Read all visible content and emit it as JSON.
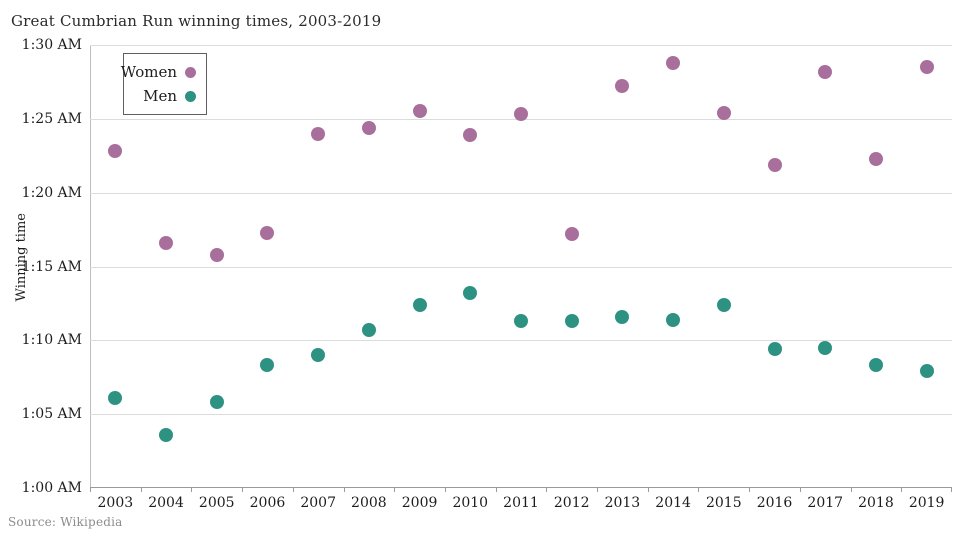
{
  "header": {
    "title": "Great Cumbrian Run winning times, 2003-2019"
  },
  "source": {
    "label": "Source: Wikipedia"
  },
  "legend": {
    "items": [
      {
        "label": "Women",
        "color": "#a86f9c"
      },
      {
        "label": "Men",
        "color": "#2e9283"
      }
    ]
  },
  "axes": {
    "y_title": "Winning time",
    "y_ticks": [
      "1:30 AM",
      "1:25 AM",
      "1:20 AM",
      "1:15 AM",
      "1:10 AM",
      "1:05 AM",
      "1:00 AM"
    ],
    "x_ticks": [
      "2003",
      "2004",
      "2005",
      "2006",
      "2007",
      "2008",
      "2009",
      "2010",
      "2011",
      "2012",
      "2013",
      "2014",
      "2015",
      "2016",
      "2017",
      "2018",
      "2019"
    ]
  },
  "chart_data": {
    "type": "scatter",
    "title": "Great Cumbrian Run winning times, 2003-2019",
    "xlabel": "",
    "ylabel": "Winning time",
    "x": [
      2003,
      2004,
      2005,
      2006,
      2007,
      2008,
      2009,
      2010,
      2011,
      2012,
      2013,
      2014,
      2015,
      2016,
      2017,
      2018,
      2019
    ],
    "y_axis": {
      "unit": "time of day (elapsed winning time shown from 1:00)",
      "min_minutes": 60,
      "max_minutes": 90,
      "tick_interval_minutes": 5,
      "tick_labels": [
        "1:30 AM",
        "1:25 AM",
        "1:20 AM",
        "1:15 AM",
        "1:10 AM",
        "1:05 AM",
        "1:00 AM"
      ]
    },
    "grid": "horizontal",
    "legend_position": "top-left-inside",
    "series": [
      {
        "name": "Women",
        "color": "#a86f9c",
        "minutes": [
          82.8,
          76.6,
          75.8,
          77.3,
          84.0,
          84.4,
          85.5,
          83.9,
          85.3,
          77.2,
          87.2,
          88.8,
          85.4,
          81.9,
          88.2,
          82.3,
          88.5
        ],
        "times": [
          "1:22:48",
          "1:16:34",
          "1:15:49",
          "1:17:18",
          "1:23:58",
          "1:24:22",
          "1:25:31",
          "1:23:53",
          "1:25:19",
          "1:17:14",
          "1:27:13",
          "1:28:47",
          "1:25:23",
          "1:21:52",
          "1:28:10",
          "1:22:16",
          "1:28:30"
        ]
      },
      {
        "name": "Men",
        "color": "#2e9283",
        "minutes": [
          66.1,
          63.6,
          65.8,
          68.3,
          69.0,
          70.7,
          72.4,
          73.2,
          71.3,
          71.3,
          71.6,
          71.4,
          72.4,
          69.4,
          69.5,
          68.3,
          67.9
        ],
        "times": [
          "1:06:06",
          "1:03:36",
          "1:05:46",
          "1:08:17",
          "1:08:58",
          "1:10:43",
          "1:12:21",
          "1:13:14",
          "1:11:16",
          "1:11:20",
          "1:11:36",
          "1:11:24",
          "1:12:25",
          "1:09:26",
          "1:09:30",
          "1:08:17",
          "1:07:52"
        ]
      }
    ]
  }
}
